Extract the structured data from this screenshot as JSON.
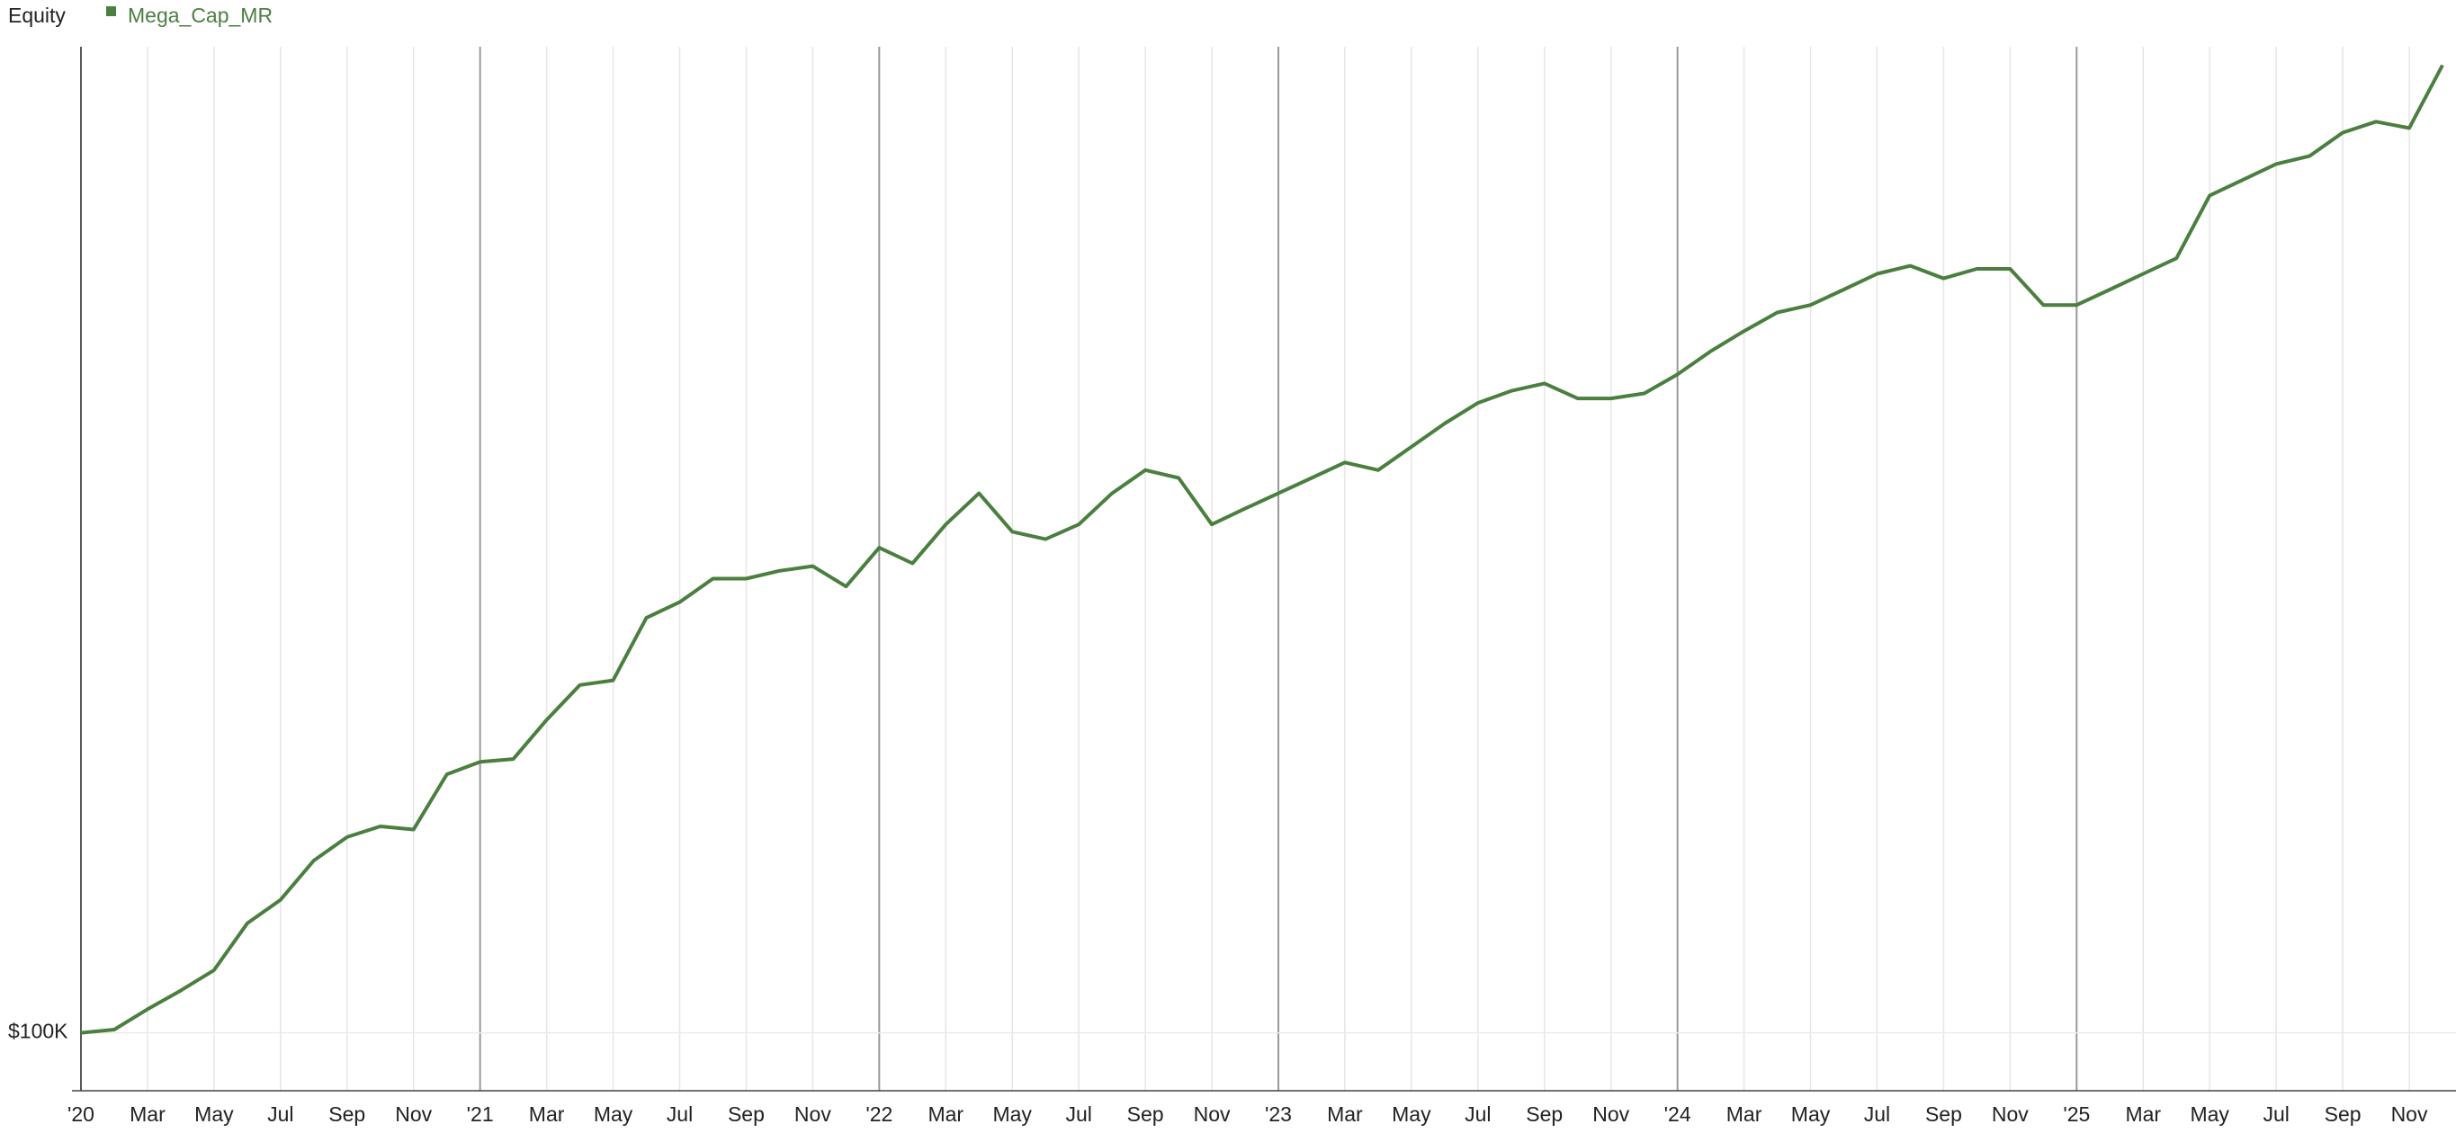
{
  "chart_data": {
    "type": "line",
    "title": "Equity",
    "scale": "log",
    "grid": true,
    "x": [
      "2020-01",
      "2020-02",
      "2020-03",
      "2020-04",
      "2020-05",
      "2020-06",
      "2020-07",
      "2020-08",
      "2020-09",
      "2020-10",
      "2020-11",
      "2020-12",
      "2021-01",
      "2021-02",
      "2021-03",
      "2021-04",
      "2021-05",
      "2021-06",
      "2021-07",
      "2021-08",
      "2021-09",
      "2021-10",
      "2021-11",
      "2021-12",
      "2022-01",
      "2022-02",
      "2022-03",
      "2022-04",
      "2022-05",
      "2022-06",
      "2022-07",
      "2022-08",
      "2022-09",
      "2022-10",
      "2022-11",
      "2022-12",
      "2023-01",
      "2023-02",
      "2023-03",
      "2023-04",
      "2023-05",
      "2023-06",
      "2023-07",
      "2023-08",
      "2023-09",
      "2023-10",
      "2023-11",
      "2023-12",
      "2024-01",
      "2024-02",
      "2024-03",
      "2024-04",
      "2024-05",
      "2024-06",
      "2024-07",
      "2024-08",
      "2024-09",
      "2024-10",
      "2024-11",
      "2024-12",
      "2025-01",
      "2025-02",
      "2025-03",
      "2025-04",
      "2025-05",
      "2025-06",
      "2025-07",
      "2025-08",
      "2025-09",
      "2025-10",
      "2025-11",
      "2025-12"
    ],
    "series": [
      {
        "name": "Mega_Cap_MR",
        "color": "#4a7f3f",
        "values": [
          100000,
          100900,
          106700,
          112300,
          118800,
          135100,
          144100,
          160500,
          171200,
          176300,
          174800,
          203400,
          210500,
          212100,
          236200,
          259900,
          263300,
          312600,
          326400,
          348100,
          348100,
          355700,
          360300,
          340700,
          379000,
          363000,
          404000,
          440000,
          396000,
          388000,
          404000,
          440000,
          469000,
          459000,
          404000,
          422000,
          440000,
          459000,
          479000,
          469000,
          500000,
          533000,
          564000,
          583000,
          595000,
          571000,
          571000,
          579000,
          610000,
          650000,
          687000,
          723000,
          738000,
          770000,
          804000,
          822000,
          794000,
          815000,
          815000,
          738000,
          738000,
          770000,
          804000,
          839000,
          997000,
          1041000,
          1087000,
          1111000,
          1185000,
          1221000,
          1200000,
          1426000
        ]
      }
    ],
    "ylim": [
      85300,
      1500000
    ],
    "yticks": [
      {
        "value": 100000,
        "label": "$100K"
      }
    ],
    "xticks": [
      {
        "value": "2020-01",
        "label": "'20"
      },
      {
        "value": "2020-03",
        "label": "Mar"
      },
      {
        "value": "2020-05",
        "label": "May"
      },
      {
        "value": "2020-07",
        "label": "Jul"
      },
      {
        "value": "2020-09",
        "label": "Sep"
      },
      {
        "value": "2020-11",
        "label": "Nov"
      },
      {
        "value": "2021-01",
        "label": "'21"
      },
      {
        "value": "2021-03",
        "label": "Mar"
      },
      {
        "value": "2021-05",
        "label": "May"
      },
      {
        "value": "2021-07",
        "label": "Jul"
      },
      {
        "value": "2021-09",
        "label": "Sep"
      },
      {
        "value": "2021-11",
        "label": "Nov"
      },
      {
        "value": "2022-01",
        "label": "'22"
      },
      {
        "value": "2022-03",
        "label": "Mar"
      },
      {
        "value": "2022-05",
        "label": "May"
      },
      {
        "value": "2022-07",
        "label": "Jul"
      },
      {
        "value": "2022-09",
        "label": "Sep"
      },
      {
        "value": "2022-11",
        "label": "Nov"
      },
      {
        "value": "2023-01",
        "label": "'23"
      },
      {
        "value": "2023-03",
        "label": "Mar"
      },
      {
        "value": "2023-05",
        "label": "May"
      },
      {
        "value": "2023-07",
        "label": "Jul"
      },
      {
        "value": "2023-09",
        "label": "Sep"
      },
      {
        "value": "2023-11",
        "label": "Nov"
      },
      {
        "value": "2024-01",
        "label": "'24"
      },
      {
        "value": "2024-03",
        "label": "Mar"
      },
      {
        "value": "2024-05",
        "label": "May"
      },
      {
        "value": "2024-07",
        "label": "Jul"
      },
      {
        "value": "2024-09",
        "label": "Sep"
      },
      {
        "value": "2024-11",
        "label": "Nov"
      },
      {
        "value": "2025-01",
        "label": "'25"
      },
      {
        "value": "2025-03",
        "label": "Mar"
      },
      {
        "value": "2025-05",
        "label": "May"
      },
      {
        "value": "2025-07",
        "label": "Jul"
      },
      {
        "value": "2025-09",
        "label": "Sep"
      },
      {
        "value": "2025-11",
        "label": "Nov"
      }
    ]
  }
}
